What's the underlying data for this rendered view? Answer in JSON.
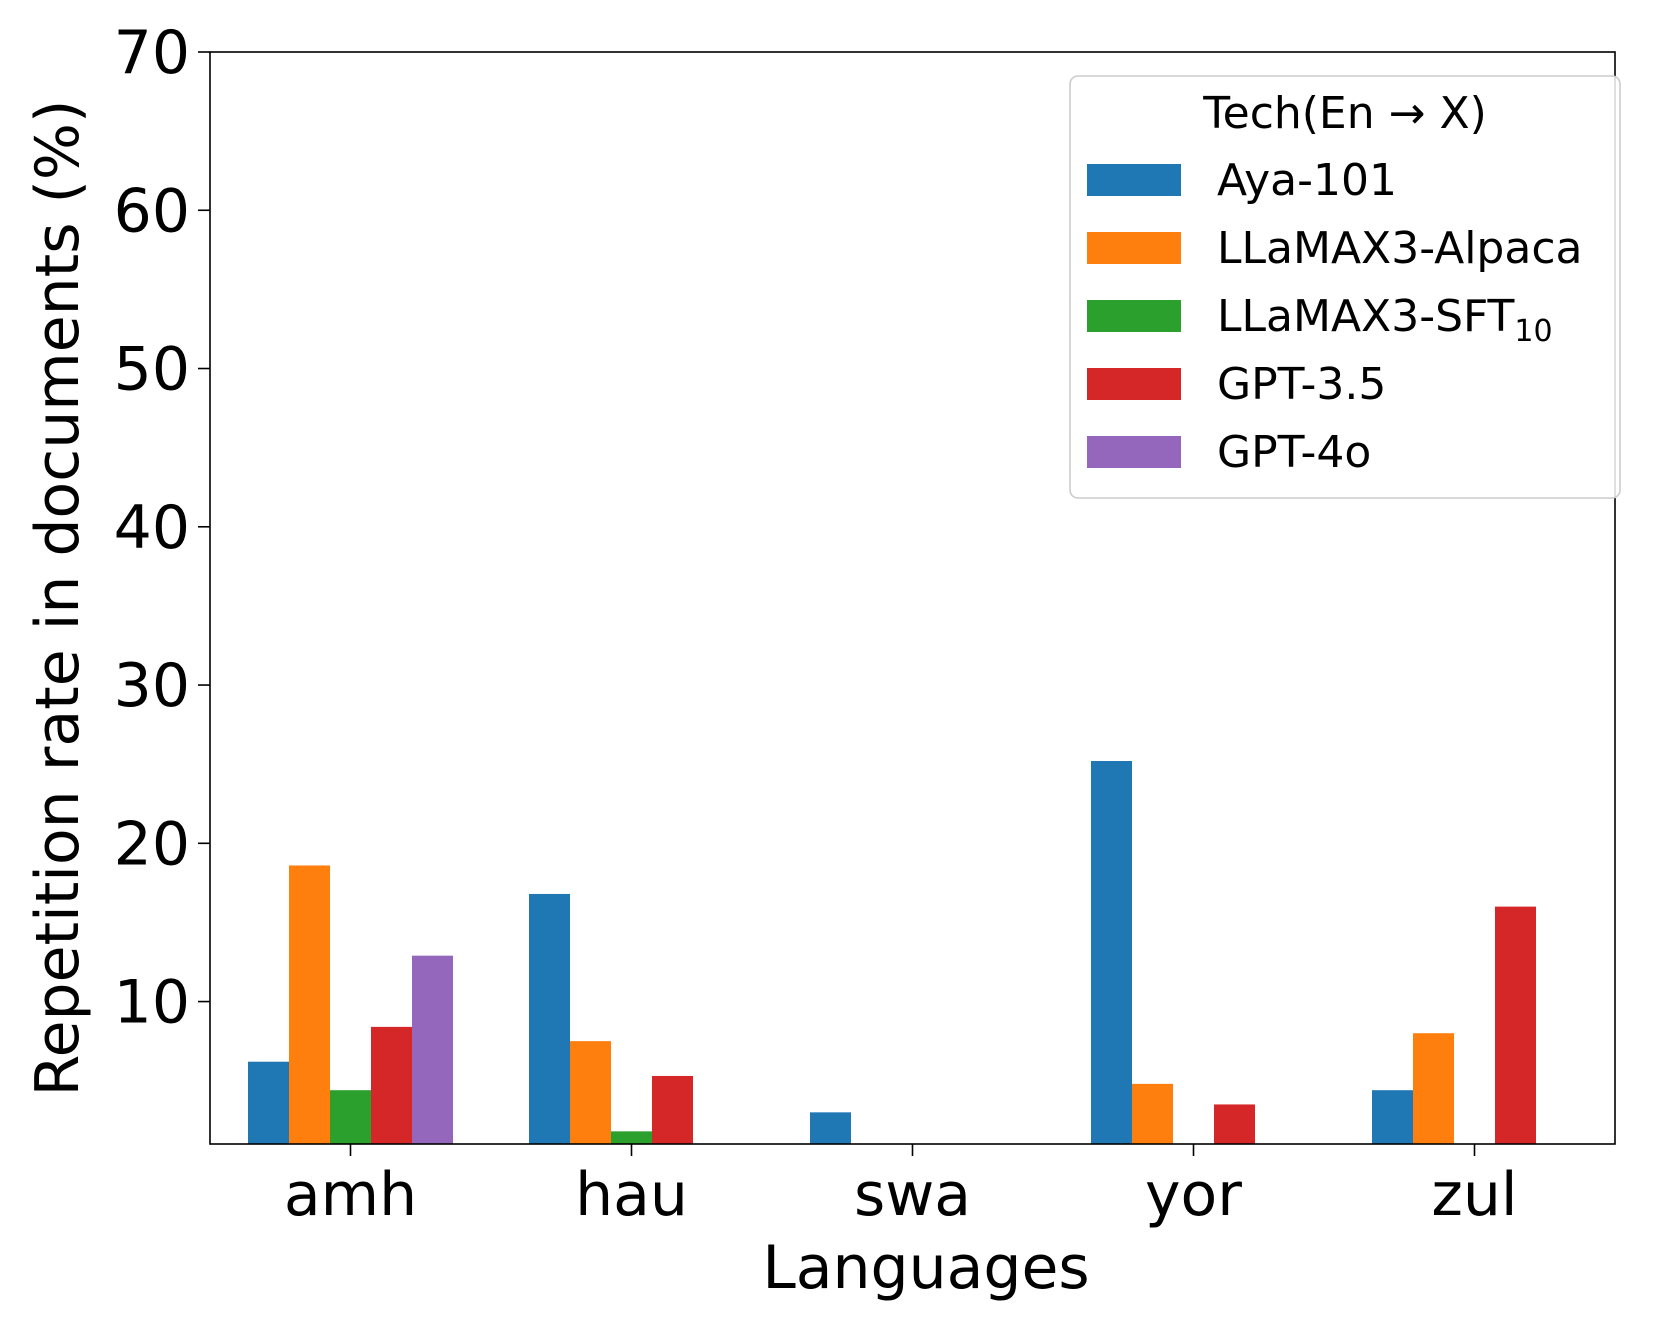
{
  "chart_data": {
    "type": "bar",
    "title": "",
    "xlabel": "Languages",
    "ylabel": "Repetition rate in documents (%)",
    "ylim": [
      1,
      70
    ],
    "yticks": [
      10,
      20,
      30,
      40,
      50,
      60,
      70
    ],
    "categories": [
      "amh",
      "hau",
      "swa",
      "yor",
      "zul"
    ],
    "legend": {
      "title": "Tech(En → X)",
      "placement": "top-right"
    },
    "series": [
      {
        "name": "Aya-101",
        "name_sub": "",
        "color": "#1f77b4",
        "values": [
          6.2,
          16.8,
          3.0,
          25.2,
          4.4
        ]
      },
      {
        "name": "LLaMAX3-Alpaca",
        "name_sub": "",
        "color": "#ff7f0e",
        "values": [
          18.6,
          7.5,
          0,
          4.8,
          8.0
        ]
      },
      {
        "name": "LLaMAX3-SFT",
        "name_sub": "10",
        "color": "#2ca02c",
        "values": [
          4.4,
          1.8,
          0,
          0,
          0
        ]
      },
      {
        "name": "GPT-3.5",
        "name_sub": "",
        "color": "#d62728",
        "values": [
          8.4,
          5.3,
          0,
          3.5,
          16.0
        ]
      },
      {
        "name": "GPT-4o",
        "name_sub": "",
        "color": "#9467bd",
        "values": [
          12.9,
          0,
          0,
          0,
          0
        ]
      }
    ]
  }
}
